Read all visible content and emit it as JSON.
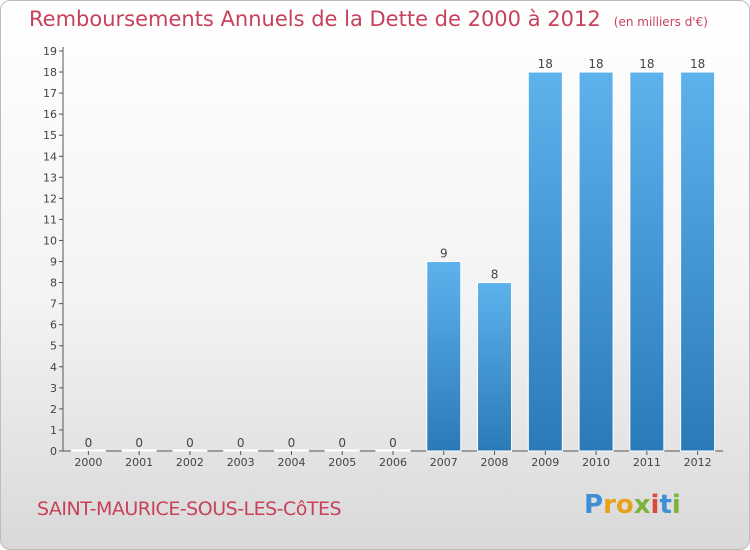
{
  "header": {
    "title": "Remboursements Annuels de la Dette de 2000 à 2012",
    "subtitle": "(en milliers d'€)"
  },
  "commune": "SAINT-MAURICE-SOUS-LES-CôTES",
  "logo": {
    "letters": [
      "P",
      "r",
      "o",
      "x",
      "i",
      "t",
      "i"
    ],
    "colors": [
      "#3d8fd6",
      "#e8a21a",
      "#e8a21a",
      "#7db53c",
      "#d94b3c",
      "#3d8fd6",
      "#7db53c"
    ]
  },
  "colors": {
    "bar_top": "#5eb2ec",
    "bar_bottom": "#2a7ab8",
    "axis": "#555555",
    "text": "#444444",
    "accent": "#c7415b"
  },
  "chart_data": {
    "type": "bar",
    "categories": [
      "2000",
      "2001",
      "2002",
      "2003",
      "2004",
      "2005",
      "2006",
      "2007",
      "2008",
      "2009",
      "2010",
      "2011",
      "2012"
    ],
    "values": [
      0,
      0,
      0,
      0,
      0,
      0,
      0,
      9,
      8,
      18,
      18,
      18,
      18
    ],
    "data_labels": [
      "0",
      "0",
      "0",
      "0",
      "0",
      "0",
      "0",
      "9",
      "8",
      "18",
      "18",
      "18",
      "18"
    ],
    "y_ticks": [
      0,
      1,
      2,
      3,
      4,
      5,
      6,
      7,
      8,
      9,
      10,
      11,
      12,
      13,
      14,
      15,
      16,
      17,
      18,
      19
    ],
    "ylim": [
      0,
      19
    ],
    "grid": false,
    "legend": "none"
  }
}
